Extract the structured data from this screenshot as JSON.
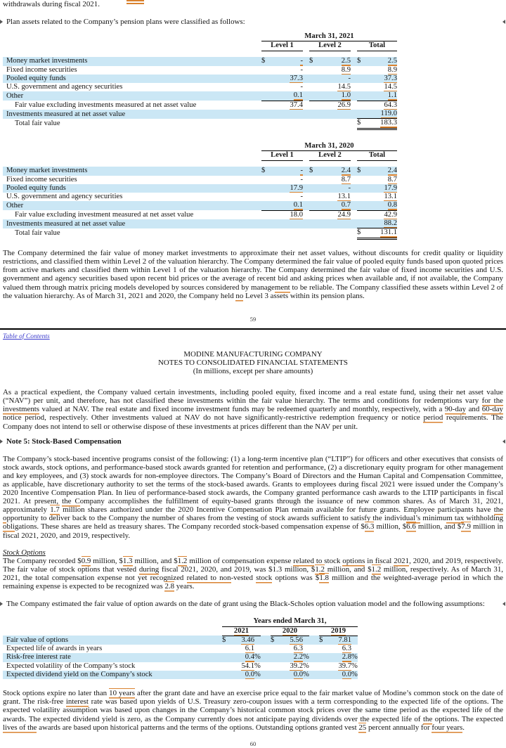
{
  "page": {
    "top_line": "withdrawals during fiscal 2021.",
    "page_number_top": "59",
    "page_number_bottom": "60",
    "toc_link": "Table of Contents",
    "company_header": {
      "line1": "MODINE MANUFACTURING COMPANY",
      "line2": "NOTES TO CONSOLIDATED FINANCIAL STATEMENTS",
      "line3": "(In millions, except per share amounts)"
    }
  },
  "colors": {
    "stripe": "#cbe7f5",
    "annotation": "#d9822f",
    "link": "#3a3acc"
  },
  "headings": {
    "note5": "Note 5: Stock-Based Compensation",
    "stock_options": "Stock Options"
  },
  "paragraphs": {
    "plan_assets": [
      {
        "t": "Plan assets related to the Company’s pension plans were classified as follows:"
      }
    ],
    "fair_value_determination": [
      {
        "t": "The Company determined the fair value of money market investments to approximate their net asset values, without discounts for credit quality or liquidity restrictions, and classified them within Level 2 of the valuation hierarchy.  The Company determined the fair value of pooled equity funds based upon quoted prices from active markets and classified them within Level 1 of the valuation hierarchy.  The Company determined the fair value of fixed income securities and U.S. government and agency securities based upon recent bid prices or the average of recent bid and asking prices when available and, if not available, the Company valued them through matrix pricing models developed by sources considered by manage"
      },
      {
        "t": "ment",
        "u": 1
      },
      {
        "t": " to be reliable.  The Company classified these assets within Level 2 of the valuation hierarchy.  As of March 31, 2021 and 2020, the Company held "
      },
      {
        "t": "no",
        "u": 1
      },
      {
        "t": " Level 3 assets within its pension plans."
      }
    ],
    "nav_expedient": [
      {
        "t": "As a practical expedient, the Company valued certain investments, including pooled equity, fixed income and a real estate fund, using their net asset value (“NAV”) per unit, and therefore, has not classified these investments within the fair value hierarchy.  The terms and conditions for redemptions vary "
      },
      {
        "t": "for the investments",
        "u": 1
      },
      {
        "t": " valued at NAV.  The real estate and fixed income investment funds may be redeemed quarterly and monthly, respectively, with a "
      },
      {
        "t": "90-day",
        "u": 1
      },
      {
        "t": " and "
      },
      {
        "t": "60-day",
        "u": 1
      },
      {
        "t": " notice period, respectively.  Other investments valued at NAV do not have significantly-restrictive redemption frequency or notice "
      },
      {
        "t": "period",
        "u": 1
      },
      {
        "t": " requirements.  The Company does not intend to sell or otherwise dispose of these investments at prices different than the NAV per unit."
      }
    ],
    "note5_body": [
      {
        "t": "The Company’s stock-based incentive programs consist of the following: (1) a long-term incentive plan (“LTIP”) for officers and other executives that consists of stock awards, stock options, and performance-based stock awards granted for retention and performance, (2) a discretionary equity program for other management and key employees, and (3) stock awards for non-employee directors.  The Company’s Board of Directors and the Human Capital and Compensation Committee, as applicable, have discretionary authority to set the terms of the stock-based awards.  Grants to employees during fiscal 2021 were issued under the Company’s 2020 Incentive Compensation Plan.  In lieu of performance-based stock awards, the Company granted performance cash awards to the LTIP participants in fiscal 2021.  At present, "
      },
      {
        "t": "the C",
        "u": 1
      },
      {
        "t": "ompany accomplishes the fulfillment of equity-based grants through the issuance of new common shares.  As of March 31, 2021, approximately "
      },
      {
        "t": "1.7",
        "u": 2
      },
      {
        "t": " million shares authorized under the 2020 Incentive Compensation Plan remain available for future grants.  Employee participants have "
      },
      {
        "t": "the o",
        "u": 1
      },
      {
        "t": "pportunity to deliver back to the Company the number of shares from the vesting of stock awards sufficient to satisfy the individ"
      },
      {
        "t": "ual’s",
        "u": 1
      },
      {
        "t": " minimu"
      },
      {
        "t": "m tax",
        "u": 1
      },
      {
        "t": " withholding "
      },
      {
        "t": "obli",
        "u": 1
      },
      {
        "t": "gations.  These shares are held as treasury shares.  The Company recorded stock-based compensation expense of $"
      },
      {
        "t": "6.3",
        "u": 2
      },
      {
        "t": " million, $"
      },
      {
        "t": "6.6",
        "u": 2
      },
      {
        "t": " million, and $"
      },
      {
        "t": "7.9",
        "u": 2
      },
      {
        "t": " million in fiscal 2021, 2020, and 2019, respectively."
      }
    ],
    "stock_options_body": [
      {
        "t": "The Company recorded $"
      },
      {
        "t": "0.9",
        "u": 2
      },
      {
        "t": " million, $"
      },
      {
        "t": "1.3",
        "u": 2
      },
      {
        "t": " million, and $"
      },
      {
        "t": "1.2",
        "u": 2
      },
      {
        "t": " million of compensation expense "
      },
      {
        "t": "related",
        "u": 1
      },
      {
        "t": " to stock "
      },
      {
        "t": "options",
        "u": 1
      },
      {
        "t": " in fiscal "
      },
      {
        "t": "2021",
        "u": 1
      },
      {
        "t": ", 2020, and 2019, respectively.  The fair value of stock options that vested "
      },
      {
        "t": "during",
        "u": 1
      },
      {
        "t": " fiscal 2021, 2020, and 2019, was $1.3 million, $"
      },
      {
        "t": "1.2",
        "u": 2
      },
      {
        "t": " million, and $"
      },
      {
        "t": "1.2",
        "u": 2
      },
      {
        "t": " million, respectively.  As of March 31, 2021, the total compensation expense not yet recognized "
      },
      {
        "t": "related to non",
        "u": 1
      },
      {
        "t": "-vested "
      },
      {
        "t": "stock",
        "u": 1
      },
      {
        "t": " options was $"
      },
      {
        "t": "1.8",
        "u": 2
      },
      {
        "t": " million and the weighted-average period in which the remaining expense is expected to be recognized was "
      },
      {
        "t": "2.8",
        "u": 2
      },
      {
        "t": " years."
      }
    ],
    "black_scholes_intro": [
      {
        "t": "The Company estimated the fair value of option awards on the date of grant using the Black-Scholes option valuation model and the following assumptions:"
      }
    ],
    "options_expire": [
      {
        "t": "Stock options expire no later than "
      },
      {
        "t": "10 years",
        "u": 2
      },
      {
        "t": " after the grant date and have an exercise price equal to the fair market value of Modine’s common stock on the date of grant.  The risk-free "
      },
      {
        "t": "interest",
        "u": 1
      },
      {
        "t": " rate was based upon yields of U.S. Treasury zero-coupon issues with a term corresponding to the expected life of the options.  The expected volatility assumption was based upon changes in the Company’s historical common stock prices over the same time period as the expected life of the awards.  The expected dividend yield is zero, as the Company currently does not anticipate paying dividends over the expected life of "
      },
      {
        "t": "the",
        "u": 1
      },
      {
        "t": " options.  The expected "
      },
      {
        "t": "lives of the",
        "u": 1
      },
      {
        "t": " awards are based upon historical patterns and the terms of the options.  Outstanding options granted vest "
      },
      {
        "t": "25",
        "u": 2
      },
      {
        "t": " percent annually for "
      },
      {
        "t": "four years",
        "u": 1
      },
      {
        "t": "."
      }
    ]
  },
  "pension_tables": [
    {
      "title": "March 31, 2021",
      "columns": [
        "Level 1",
        "Level 2",
        "Total"
      ],
      "rows": [
        {
          "label": "Money market investments",
          "s": 1,
          "cells": [
            {
              "d": "$",
              "v": "-",
              "a": "dot"
            },
            {
              "d": "$",
              "v": "2.5",
              "a": "u"
            },
            {
              "d": "$",
              "v": "2.5",
              "a": "u"
            }
          ]
        },
        {
          "label": "Fixed income securities",
          "cells": [
            {
              "v": "-"
            },
            {
              "v": "8.9",
              "a": "u"
            },
            {
              "v": "8.9",
              "a": "u"
            }
          ]
        },
        {
          "label": "Pooled equity funds",
          "s": 1,
          "cells": [
            {
              "v": "37.3",
              "a": "u"
            },
            {
              "v": "-"
            },
            {
              "v": "37.3",
              "a": "u"
            }
          ]
        },
        {
          "label": "U.S. government and agency securities",
          "cells": [
            {
              "v": "-"
            },
            {
              "v": "14.5",
              "a": "u"
            },
            {
              "v": "14.5",
              "a": "u"
            }
          ]
        },
        {
          "label": "Other",
          "s": 1,
          "rule": 1,
          "cells": [
            {
              "v": "0.1",
              "a": "u"
            },
            {
              "v": "1.0",
              "a": "u"
            },
            {
              "v": "1.1",
              "a": "u"
            }
          ]
        },
        {
          "label": "Fair value excluding investments measured at net asset value",
          "ind": 1,
          "cells": [
            {
              "v": "37.4",
              "a": "u"
            },
            {
              "v": "26.9",
              "a": "u"
            },
            {
              "v": "64.3",
              "a": "u"
            }
          ]
        },
        {
          "label": "Investments measured at net asset value",
          "s": 1,
          "cells": [
            null,
            null,
            {
              "v": "119.0",
              "a": "u"
            }
          ]
        },
        {
          "label": "Total fair value",
          "ind": 1,
          "cells": [
            null,
            null,
            {
              "d": "$",
              "v": "183.3",
              "a": "u",
              "top": 1
            }
          ]
        }
      ],
      "dbl": 1
    },
    {
      "title": "March 31, 2020",
      "columns": [
        "Level 1",
        "Level 2",
        "Total"
      ],
      "rows": [
        {
          "label": "Money market investments",
          "s": 1,
          "cells": [
            {
              "d": "$",
              "v": "-",
              "a": "dot"
            },
            {
              "d": "$",
              "v": "2.4",
              "a": "u"
            },
            {
              "d": "$",
              "v": "2.4",
              "a": "u"
            }
          ]
        },
        {
          "label": "Fixed income securities",
          "cells": [
            {
              "v": "-"
            },
            {
              "v": "8.7",
              "a": "u"
            },
            {
              "v": "8.7",
              "a": "u"
            }
          ]
        },
        {
          "label": "Pooled equity funds",
          "s": 1,
          "cells": [
            {
              "v": "17.9",
              "a": "u"
            },
            {
              "v": "-"
            },
            {
              "v": "17.9",
              "a": "u"
            }
          ]
        },
        {
          "label": "U.S. government and agency securities",
          "cells": [
            {
              "v": "-"
            },
            {
              "v": "13.1",
              "a": "u"
            },
            {
              "v": "13.1",
              "a": "u"
            }
          ]
        },
        {
          "label": "Other",
          "s": 1,
          "rule": 1,
          "cells": [
            {
              "v": "0.1",
              "a": "u"
            },
            {
              "v": "0.7",
              "a": "u"
            },
            {
              "v": "0.8",
              "a": "u"
            }
          ]
        },
        {
          "label": "Fair value excluding investment measured at net asset value",
          "ind": 1,
          "cells": [
            {
              "v": "18.0",
              "a": "u"
            },
            {
              "v": "24.9",
              "a": "u"
            },
            {
              "v": "42.9",
              "a": "u"
            }
          ]
        },
        {
          "label": "Investments measured at net asset value",
          "s": 1,
          "cells": [
            null,
            null,
            {
              "v": "88.2",
              "a": "u"
            }
          ]
        },
        {
          "label": "Total fair value",
          "ind": 1,
          "cells": [
            null,
            null,
            {
              "d": "$",
              "v": "131.1",
              "a": "u",
              "top": 1
            }
          ]
        }
      ],
      "dbl": 1
    }
  ],
  "assumptions_table": {
    "title": "Years ended March 31,",
    "columns": [
      "2021",
      "2020",
      "2019"
    ],
    "rows": [
      {
        "label": "Fair value of options",
        "s": 1,
        "dollar": true,
        "values": [
          "3.46",
          "5.56",
          "7.81"
        ]
      },
      {
        "label": "Expected life of awards in years",
        "values": [
          "6.1",
          "6.3",
          "6.3"
        ]
      },
      {
        "label": "Risk-free interest rate",
        "s": 1,
        "pct": true,
        "values": [
          "0.4",
          "2.2",
          "2.8"
        ]
      },
      {
        "label": "Expected volatility of the Company’s stock",
        "pct": true,
        "values": [
          "54.1",
          "39.2",
          "39.7"
        ]
      },
      {
        "label": "Expected dividend yield on the Company’s stock",
        "s": 1,
        "pct": true,
        "values": [
          "0.0",
          "0.0",
          "0.0"
        ]
      }
    ]
  }
}
